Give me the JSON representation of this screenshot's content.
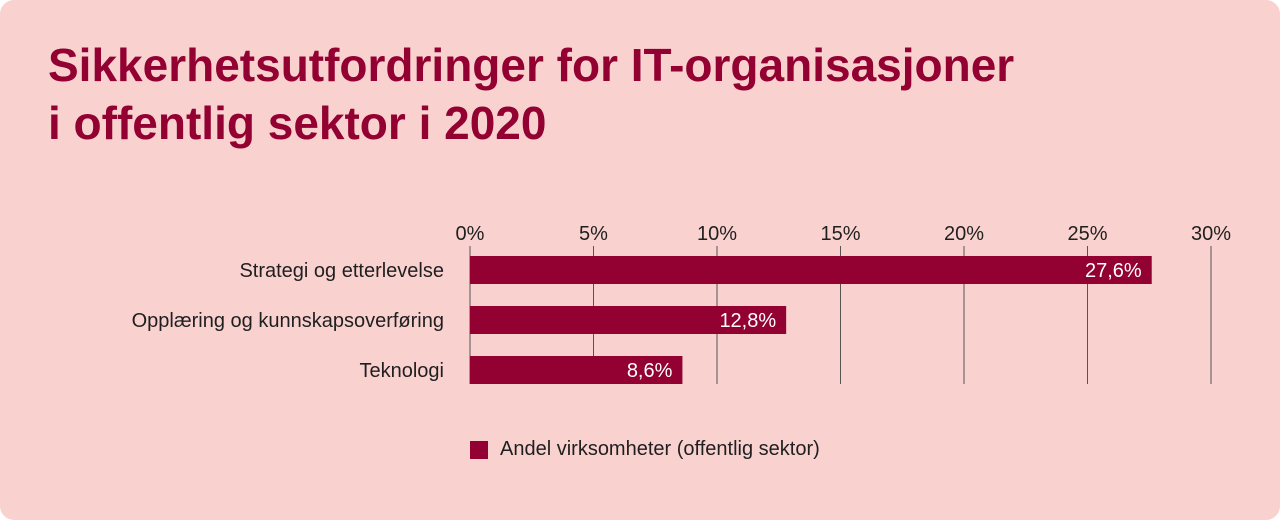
{
  "title": {
    "line1": "Sikkerhetsutfordringer for IT-organisasjoner",
    "line2": "i offentlig sektor i 2020"
  },
  "colors": {
    "background": "#f9d2d0",
    "accent": "#930032",
    "gridline": "#555555"
  },
  "chart_data": {
    "type": "bar",
    "orientation": "horizontal",
    "categories": [
      "Strategi og etterlevelse",
      "Opplæring og kunnskapsoverføring",
      "Teknologi"
    ],
    "series": [
      {
        "name": "Andel virksomheter (offentlig sektor)",
        "values": [
          27.6,
          12.8,
          8.6
        ]
      }
    ],
    "data_labels": [
      "27,6%",
      "12,8%",
      "8,6%"
    ],
    "xlim": [
      0,
      30
    ],
    "xticks": [
      0,
      5,
      10,
      15,
      20,
      25,
      30
    ],
    "xtick_labels": [
      "0%",
      "5%",
      "10%",
      "15%",
      "20%",
      "25%",
      "30%"
    ],
    "x_axis_position": "top",
    "grid": true,
    "legend_position": "bottom"
  }
}
